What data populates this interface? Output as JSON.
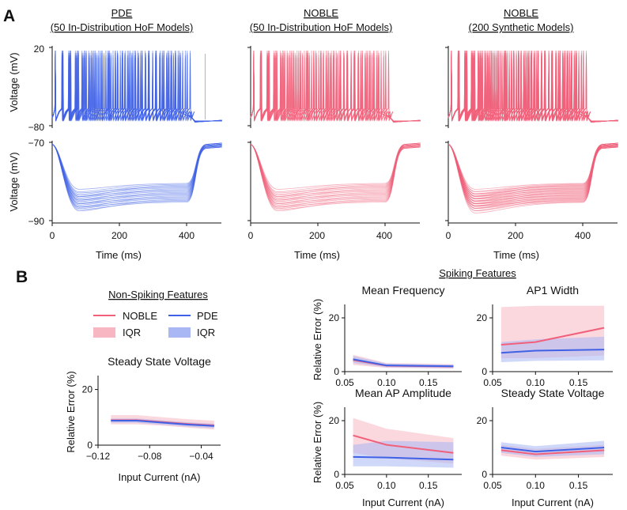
{
  "colors": {
    "noble": "#f0607a",
    "noble_light": "#f7b6c2",
    "pde": "#3f61e6",
    "pde_light": "#a9b8f4",
    "axis": "#111111"
  },
  "panel_a": {
    "letter": "A",
    "columns": [
      {
        "title_line1": "PDE",
        "title_line2": "(50 In-Distribution HoF Models)",
        "color": "#3f61e6"
      },
      {
        "title_line1": "NOBLE",
        "title_line2": "(50 In-Distribution HoF Models)",
        "color": "#f0607a"
      },
      {
        "title_line1": "NOBLE",
        "title_line2": "(200 Synthetic Models)",
        "color": "#f0607a"
      }
    ],
    "top_ylabel": "Voltage (mV)",
    "bottom_ylabel": "Voltage (mV)",
    "top_yticks": [
      "20",
      "−80"
    ],
    "bottom_yticks": [
      "−70",
      "−90"
    ],
    "xticks": [
      "0",
      "200",
      "400"
    ],
    "xlabel": "Time (ms)"
  },
  "panel_b": {
    "letter": "B",
    "nonspiking_heading": "Non-Spiking Features",
    "spiking_heading": "Spiking Features",
    "legend": {
      "noble": "NOBLE",
      "pde": "PDE",
      "iqr1": "IQR",
      "iqr2": "IQR"
    },
    "ylabel": "Relative Error (%)",
    "xlabel": "Input Current (nA)"
  },
  "chart_data": [
    {
      "type": "line",
      "title": "Steady State Voltage",
      "panel": "non-spiking",
      "xlabel": "Input Current (nA)",
      "ylabel": "Relative Error (%)",
      "xlim": [
        -0.12,
        -0.025
      ],
      "ylim": [
        0,
        25
      ],
      "xticks": [
        -0.12,
        -0.08,
        -0.04
      ],
      "xtick_labels": [
        "−0.12",
        "−0.08",
        "−0.04"
      ],
      "yticks": [
        0,
        20
      ],
      "ytick_labels": [
        "0",
        "20"
      ],
      "x": [
        -0.11,
        -0.09,
        -0.07,
        -0.05,
        -0.03
      ],
      "series": [
        {
          "name": "NOBLE",
          "values": [
            9,
            9,
            8.3,
            7.6,
            7.1
          ],
          "iqr_low": [
            7.5,
            7.5,
            7,
            6.3,
            5.6
          ],
          "iqr_high": [
            10.8,
            10.8,
            10,
            9.3,
            8.8
          ]
        },
        {
          "name": "PDE",
          "values": [
            8.8,
            8.8,
            8.1,
            7.4,
            6.9
          ],
          "iqr_low": [
            8,
            8,
            7.3,
            6.6,
            6.1
          ],
          "iqr_high": [
            9.6,
            9.6,
            8.9,
            8.2,
            7.7
          ]
        }
      ]
    },
    {
      "type": "line",
      "title": "Mean Frequency",
      "panel": "spiking",
      "xlabel": "",
      "ylabel": "Relative Error (%)",
      "xlim": [
        0.05,
        0.19
      ],
      "ylim": [
        0,
        25
      ],
      "xticks": [
        0.05,
        0.1,
        0.15
      ],
      "xtick_labels": [
        "0.05",
        "0.10",
        "0.15"
      ],
      "yticks": [
        0,
        20
      ],
      "ytick_labels": [
        "0",
        "20"
      ],
      "x": [
        0.06,
        0.1,
        0.18
      ],
      "series": [
        {
          "name": "NOBLE",
          "values": [
            4.3,
            2.2,
            1.9
          ],
          "iqr_low": [
            2.5,
            1.4,
            1.1
          ],
          "iqr_high": [
            6.3,
            3.2,
            2.8
          ]
        },
        {
          "name": "PDE",
          "values": [
            4.6,
            2.3,
            2.0
          ],
          "iqr_low": [
            3.2,
            1.6,
            1.3
          ],
          "iqr_high": [
            5.8,
            3.0,
            2.6
          ]
        }
      ]
    },
    {
      "type": "line",
      "title": "AP1 Width",
      "panel": "spiking",
      "xlabel": "",
      "ylabel": "",
      "xlim": [
        0.05,
        0.19
      ],
      "ylim": [
        0,
        25
      ],
      "xticks": [
        0.05,
        0.1,
        0.15
      ],
      "xtick_labels": [
        "0.05",
        "0.10",
        "0.15"
      ],
      "yticks": [
        0,
        20
      ],
      "ytick_labels": [
        "0",
        "20"
      ],
      "x": [
        0.06,
        0.1,
        0.18
      ],
      "series": [
        {
          "name": "NOBLE",
          "values": [
            10,
            11,
            16.3
          ],
          "iqr_low": [
            5,
            5,
            6
          ],
          "iqr_high": [
            24,
            24.5,
            24.5
          ]
        },
        {
          "name": "PDE",
          "values": [
            7,
            7.8,
            8.2
          ],
          "iqr_low": [
            3.5,
            4,
            4.2
          ],
          "iqr_high": [
            11,
            12,
            13
          ]
        }
      ]
    },
    {
      "type": "line",
      "title": "Mean AP Amplitude",
      "panel": "spiking",
      "xlabel": "Input Current (nA)",
      "ylabel": "Relative Error (%)",
      "xlim": [
        0.05,
        0.19
      ],
      "ylim": [
        0,
        25
      ],
      "xticks": [
        0.05,
        0.1,
        0.15
      ],
      "xtick_labels": [
        "0.05",
        "0.10",
        "0.15"
      ],
      "yticks": [
        0,
        20
      ],
      "ytick_labels": [
        "0",
        "20"
      ],
      "x": [
        0.06,
        0.1,
        0.18
      ],
      "series": [
        {
          "name": "NOBLE",
          "values": [
            14.5,
            11,
            8
          ],
          "iqr_low": [
            8,
            6,
            4
          ],
          "iqr_high": [
            21,
            17,
            13.5
          ]
        },
        {
          "name": "PDE",
          "values": [
            6.5,
            6.3,
            5.5
          ],
          "iqr_low": [
            3,
            3,
            2.5
          ],
          "iqr_high": [
            11,
            12.5,
            12
          ]
        }
      ]
    },
    {
      "type": "line",
      "title": "Steady State Voltage",
      "panel": "spiking",
      "xlabel": "Input Current (nA)",
      "ylabel": "",
      "xlim": [
        0.05,
        0.19
      ],
      "ylim": [
        0,
        25
      ],
      "xticks": [
        0.05,
        0.1,
        0.15
      ],
      "xtick_labels": [
        "0.05",
        "0.10",
        "0.15"
      ],
      "yticks": [
        0,
        20
      ],
      "ytick_labels": [
        "0",
        "20"
      ],
      "x": [
        0.06,
        0.1,
        0.18
      ],
      "series": [
        {
          "name": "NOBLE",
          "values": [
            9,
            7.5,
            9
          ],
          "iqr_low": [
            7,
            5.5,
            6.5
          ],
          "iqr_high": [
            11,
            9.5,
            11
          ]
        },
        {
          "name": "PDE",
          "values": [
            10,
            8.5,
            10
          ],
          "iqr_low": [
            8,
            6.5,
            7.5
          ],
          "iqr_high": [
            12,
            10.5,
            12.5
          ]
        }
      ]
    }
  ]
}
